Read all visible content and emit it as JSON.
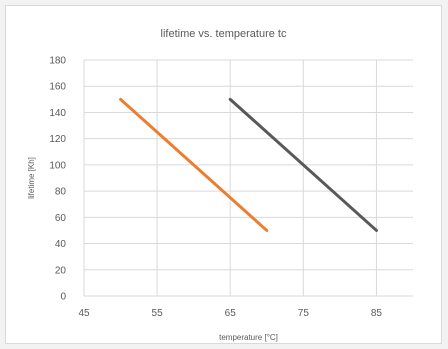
{
  "chart_data": {
    "type": "line",
    "title": "lifetime vs. temperature tc",
    "xlabel": "temperature [°C]",
    "ylabel": "lifetime [Kh]",
    "xlim": [
      45,
      90
    ],
    "ylim": [
      0,
      180
    ],
    "x_ticks": [
      45,
      55,
      65,
      75,
      85
    ],
    "y_ticks": [
      0,
      20,
      40,
      60,
      80,
      100,
      120,
      140,
      160,
      180
    ],
    "grid": true,
    "series": [
      {
        "color": "#ed7d31",
        "x": [
          50,
          70
        ],
        "y": [
          150,
          50
        ]
      },
      {
        "color": "#595959",
        "x": [
          65,
          85
        ],
        "y": [
          150,
          50
        ]
      }
    ]
  }
}
